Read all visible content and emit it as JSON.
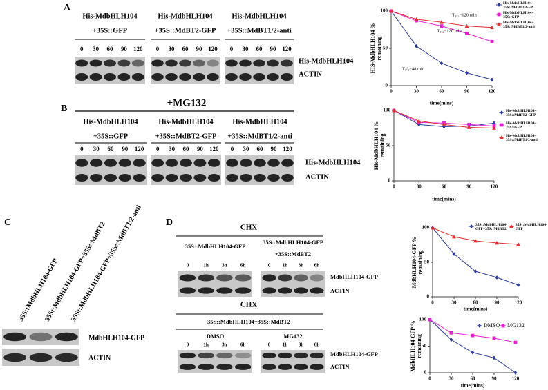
{
  "panel_labels": [
    "A",
    "B",
    "C",
    "D"
  ],
  "panel_a": {
    "groups": [
      {
        "title": "His-MdbHLH104",
        "subtitle": "+35S::GFP",
        "lanes": [
          "0",
          "30",
          "60",
          "90",
          "120"
        ]
      },
      {
        "title": "His-MdbHLH104",
        "subtitle": "+35S::MdBT2-GFP",
        "lanes": [
          "0",
          "30",
          "60",
          "90",
          "120"
        ]
      },
      {
        "title": "His-MdbHLH104",
        "subtitle": "+35S::MdBT1/2-anti",
        "lanes": [
          "0",
          "30",
          "60",
          "90",
          "120"
        ]
      }
    ],
    "rows": [
      "His-MdbHLH104",
      "ACTIN"
    ]
  },
  "panel_b": {
    "treatment": "+MG132",
    "groups": [
      {
        "title": "His-MdbHLH104",
        "subtitle": "+35S::GFP",
        "lanes": [
          "0",
          "30",
          "60",
          "90",
          "120"
        ]
      },
      {
        "title": "His-MdbHLH104",
        "subtitle": "+35S::MdBT2-GFP",
        "lanes": [
          "0",
          "30",
          "60",
          "90",
          "120"
        ]
      },
      {
        "title": "His-MdbHLH104",
        "subtitle": "+35S::MdBT1/2-anti",
        "lanes": [
          "0",
          "30",
          "60",
          "90",
          "120"
        ]
      }
    ],
    "rows": [
      "His-MdbHLH104",
      "ACTIN"
    ]
  },
  "panel_c": {
    "lanes": [
      "35S::MdbHLH104-GFP",
      "35S::MdbHLH104-GFP+35S::MdBT2",
      "35S::MdbHLH104-GFP+35S::MdBT1/2-anti"
    ],
    "rows": [
      "MdbHLH104-GFP",
      "ACTIN"
    ]
  },
  "panel_d": {
    "top": {
      "treatment": "CHX",
      "groups": [
        {
          "title": "35S::MdbHLH104-GFP",
          "lanes": [
            "0",
            "1h",
            "3h",
            "6h"
          ]
        },
        {
          "title": "35S::MdbHLH104-GFP",
          "subtitle": "+35S::MdBT2",
          "lanes": [
            "0",
            "1h",
            "3h",
            "6h"
          ]
        }
      ],
      "rows": [
        "MdbHLH104-GFP",
        "ACTIN"
      ]
    },
    "bottom": {
      "treatment": "CHX",
      "construct": "35S::MdbHLH104+35S::MdBT2",
      "groups": [
        {
          "title": "DMSO",
          "lanes": [
            "0",
            "1h",
            "3h",
            "6h"
          ]
        },
        {
          "title": "MG132",
          "lanes": [
            "0",
            "1h",
            "3h",
            "6h"
          ]
        }
      ],
      "rows": [
        "MdbHLH104-GFP",
        "ACTIN"
      ]
    }
  },
  "chart_data": [
    {
      "type": "line",
      "x": [
        0,
        30,
        60,
        90,
        120
      ],
      "xlim": [
        0,
        120
      ],
      "xticks": [
        0,
        30,
        60,
        90,
        120
      ],
      "ylim": [
        0,
        100
      ],
      "yticks": [
        0,
        50,
        100
      ],
      "x_label": "time(mins)",
      "y_label": [
        "HIS-MdbHLH104 %",
        "remaining"
      ],
      "annotations": [
        "T₁/₂=120 min",
        "T₁/₂=120 min",
        "T₁/₂=48 min"
      ],
      "series": [
        {
          "name": "His-MdbHLH104+ 35S::MdBT2-GFP",
          "color": "#2b3a9a",
          "marker": "diamond",
          "values": [
            100,
            53,
            30,
            17,
            8
          ]
        },
        {
          "name": "His-MdbHLH104+ 35S::GFP",
          "color": "#e020d0",
          "marker": "square",
          "values": [
            100,
            87,
            80,
            70,
            59
          ]
        },
        {
          "name": "His-MdbHLH104+ 35S::MdBT1/2-anti",
          "color": "#e03030",
          "marker": "triangle",
          "values": [
            100,
            89,
            85,
            80,
            78
          ]
        }
      ]
    },
    {
      "type": "line",
      "x": [
        0,
        30,
        60,
        90,
        120
      ],
      "xlim": [
        0,
        120
      ],
      "xticks": [
        0,
        30,
        60,
        90,
        120
      ],
      "ylim": [
        0,
        100
      ],
      "yticks": [
        0,
        50,
        100
      ],
      "x_label": "time(mins)",
      "y_label": [
        "His-MdbHLH104 %",
        "remaining"
      ],
      "series": [
        {
          "name": "His-MdbHLH104+ 35S::MdBT2-GFP",
          "color": "#2b3a9a",
          "marker": "diamond",
          "values": [
            100,
            80,
            77,
            78,
            82
          ]
        },
        {
          "name": "His-MdbHLH104+ 35S::GFP",
          "color": "#e020d0",
          "marker": "square",
          "values": [
            100,
            83,
            82,
            80,
            78
          ]
        },
        {
          "name": "His-MdbHLH104+ 35S::MdBT1/2-anti",
          "color": "#e03030",
          "marker": "triangle",
          "values": [
            100,
            85,
            80,
            76,
            75
          ]
        }
      ]
    },
    {
      "type": "line",
      "x": [
        0,
        30,
        60,
        90,
        120
      ],
      "xlim": [
        0,
        120
      ],
      "xticks": [
        0,
        30,
        60,
        90,
        120
      ],
      "ylim": [
        0,
        100
      ],
      "yticks": [
        0,
        50,
        100
      ],
      "x_label": "time(mins)",
      "y_label": [
        "MdbHLH104-GFP %",
        "remaining"
      ],
      "series": [
        {
          "name": "35S::MdbHLH104- GFP+35S::MdBT2",
          "color": "#2b3a9a",
          "marker": "diamond",
          "values": [
            100,
            62,
            37,
            28,
            17
          ]
        },
        {
          "name": "35S::MdbHLH104- GFP",
          "color": "#e03030",
          "marker": "triangle",
          "values": [
            100,
            87,
            81,
            78,
            76
          ]
        }
      ]
    },
    {
      "type": "line",
      "x": [
        0,
        30,
        60,
        90,
        120
      ],
      "xlim": [
        0,
        120
      ],
      "xticks": [
        0,
        30,
        60,
        90,
        120
      ],
      "ylim": [
        0,
        100
      ],
      "yticks": [
        0,
        50,
        100
      ],
      "x_label": "time(mins)",
      "y_label": [
        "MdbHLH104-GFP %",
        "remaining"
      ],
      "series": [
        {
          "name": "DMSO",
          "color": "#2b3a9a",
          "marker": "diamond",
          "values": [
            100,
            62,
            38,
            28,
            0
          ]
        },
        {
          "name": "MG132",
          "color": "#e020d0",
          "marker": "square",
          "values": [
            100,
            75,
            70,
            65,
            57
          ]
        }
      ]
    }
  ]
}
